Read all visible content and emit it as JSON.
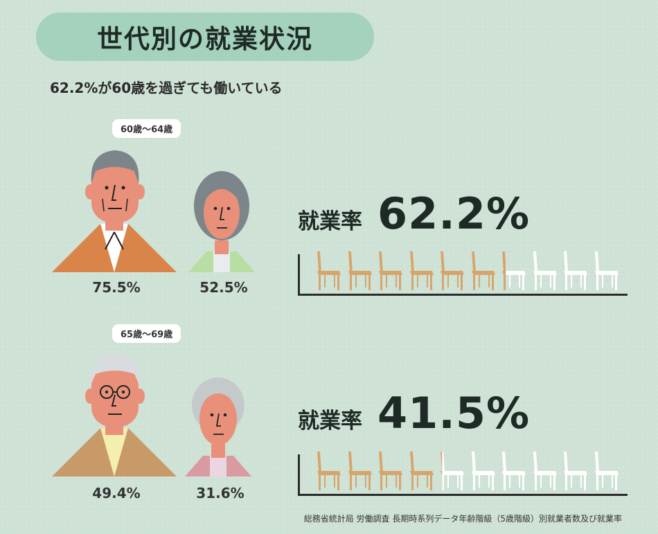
{
  "title": "世代別の就業状況",
  "subtitle": "62.2%が60歳を過ぎても働いている",
  "groups": [
    {
      "age_label": "60歳〜64歳",
      "male_pct": "75.5%",
      "female_pct": "52.5%",
      "rate_label": "就業率",
      "rate_value": "62.2%",
      "rate": 62.2
    },
    {
      "age_label": "65歳〜69歳",
      "male_pct": "49.4%",
      "female_pct": "31.6%",
      "rate_label": "就業率",
      "rate_value": "41.5%",
      "rate": 41.5
    }
  ],
  "source": "総務省統計局 労働調査 長期時系列データ年齢階級（5歳階級）別就業者数及び就業率",
  "colors": {
    "background": "#cfe2d6",
    "title_pill": "#a4d2bc",
    "chair_filled": "#d6a56c",
    "chair_empty": "#ffffff",
    "skin": "#e8907a",
    "jacket_orange": "#d9854a",
    "jacket_brown": "#c89a68",
    "cardigan_green": "#b9dea3",
    "cardigan_pink": "#d99aa1"
  }
}
